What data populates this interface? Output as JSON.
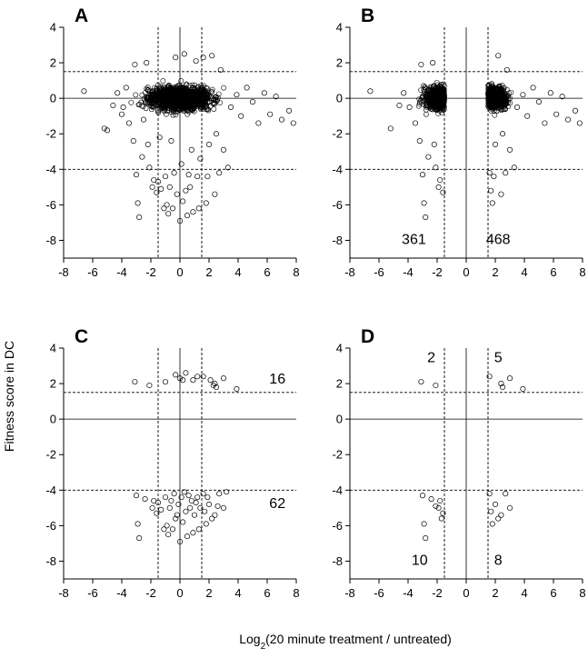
{
  "figure": {
    "ylabel": "Fitness score in DC",
    "xlabel_prefix": "Log",
    "xlabel_sub": "2",
    "xlabel_suffix": "(20 minute treatment / untreated)"
  },
  "chart_data": [
    {
      "type": "scatter",
      "panel": "A",
      "xlim": [
        -8,
        8
      ],
      "ylim": [
        -9,
        4
      ],
      "xticks": [
        -8,
        -6,
        -4,
        -2,
        0,
        2,
        4,
        6,
        8
      ],
      "yticks": [
        -8,
        -6,
        -4,
        -2,
        0,
        2,
        4
      ],
      "grid": false,
      "vlines": [
        -1.5,
        1.5
      ],
      "hlines": [
        1.5,
        -4
      ],
      "counts": [],
      "points": [
        [
          -6.6,
          0.4
        ],
        [
          -5.2,
          -1.7
        ],
        [
          -5.0,
          -1.8
        ],
        [
          -4.6,
          -0.4
        ],
        [
          -4.3,
          0.3
        ],
        [
          -4.0,
          -0.9
        ],
        [
          -3.9,
          -0.5
        ],
        [
          -3.7,
          0.6
        ],
        [
          -3.5,
          -1.4
        ],
        [
          -3.2,
          -2.4
        ],
        [
          -3.1,
          1.9
        ],
        [
          -3.0,
          -4.3
        ],
        [
          -2.9,
          -5.9
        ],
        [
          -2.8,
          -6.7
        ],
        [
          -2.6,
          -3.3
        ],
        [
          -2.5,
          -1.2
        ],
        [
          -2.3,
          2.0
        ],
        [
          -2.2,
          -2.6
        ],
        [
          -2.1,
          -3.9
        ],
        [
          -1.9,
          -5.0
        ],
        [
          -1.8,
          -4.6
        ],
        [
          -1.6,
          -5.3
        ],
        [
          -1.5,
          -4.7
        ],
        [
          -1.4,
          -2.2
        ],
        [
          -1.3,
          -5.1
        ],
        [
          -1.1,
          -6.2
        ],
        [
          -1.0,
          -4.4
        ],
        [
          -0.9,
          -6.0
        ],
        [
          -0.8,
          -6.5
        ],
        [
          -0.7,
          -5.0
        ],
        [
          -0.6,
          -2.4
        ],
        [
          -0.5,
          -6.2
        ],
        [
          -0.4,
          -4.2
        ],
        [
          -0.3,
          2.3
        ],
        [
          -0.2,
          -5.4
        ],
        [
          0.0,
          -6.9
        ],
        [
          0.1,
          -3.7
        ],
        [
          0.2,
          -5.8
        ],
        [
          0.3,
          2.5
        ],
        [
          0.4,
          -5.2
        ],
        [
          0.5,
          -6.6
        ],
        [
          0.6,
          -4.3
        ],
        [
          0.7,
          -5.0
        ],
        [
          0.8,
          -2.9
        ],
        [
          0.9,
          -6.4
        ],
        [
          1.1,
          2.1
        ],
        [
          1.2,
          -4.4
        ],
        [
          1.3,
          -6.2
        ],
        [
          1.4,
          -3.4
        ],
        [
          1.6,
          2.3
        ],
        [
          1.8,
          -5.9
        ],
        [
          1.9,
          -4.4
        ],
        [
          2.0,
          -2.6
        ],
        [
          2.2,
          2.4
        ],
        [
          2.4,
          -5.4
        ],
        [
          2.5,
          -2.0
        ],
        [
          2.7,
          -4.2
        ],
        [
          2.8,
          1.6
        ],
        [
          3.0,
          -2.9
        ],
        [
          3.3,
          -3.9
        ],
        [
          3.5,
          -0.5
        ],
        [
          3.9,
          0.2
        ],
        [
          4.2,
          -1.0
        ],
        [
          4.6,
          0.6
        ],
        [
          5.0,
          -0.2
        ],
        [
          5.4,
          -1.4
        ],
        [
          5.8,
          0.3
        ],
        [
          6.2,
          -0.9
        ],
        [
          6.6,
          0.1
        ],
        [
          7.0,
          -1.2
        ],
        [
          7.5,
          -0.7
        ],
        [
          7.8,
          -1.4
        ]
      ]
    },
    {
      "type": "scatter",
      "panel": "B",
      "xlim": [
        -8,
        8
      ],
      "ylim": [
        -9,
        4
      ],
      "xticks": [
        -8,
        -6,
        -4,
        -2,
        0,
        2,
        4,
        6,
        8
      ],
      "yticks": [
        -8,
        -6,
        -4,
        -2,
        0,
        2,
        4
      ],
      "grid": false,
      "vlines": [
        -1.5,
        1.5
      ],
      "hlines": [
        1.5,
        -4
      ],
      "counts": [
        {
          "text": "361",
          "x": -3.6,
          "y": -8.2
        },
        {
          "text": "468",
          "x": 2.2,
          "y": -8.2
        }
      ],
      "points": [
        [
          -6.6,
          0.4
        ],
        [
          -5.2,
          -1.7
        ],
        [
          -4.6,
          -0.4
        ],
        [
          -4.3,
          0.3
        ],
        [
          -3.9,
          -0.5
        ],
        [
          -3.5,
          -1.4
        ],
        [
          -3.2,
          -2.4
        ],
        [
          -3.1,
          1.9
        ],
        [
          -3.0,
          -4.3
        ],
        [
          -2.9,
          -5.9
        ],
        [
          -2.8,
          -6.7
        ],
        [
          -2.6,
          -3.3
        ],
        [
          -2.3,
          2.0
        ],
        [
          -2.2,
          -2.6
        ],
        [
          -2.1,
          -3.9
        ],
        [
          -1.9,
          -5.0
        ],
        [
          -1.8,
          -4.6
        ],
        [
          -1.6,
          -5.3
        ],
        [
          1.6,
          -4.2
        ],
        [
          1.7,
          -5.2
        ],
        [
          1.8,
          -5.9
        ],
        [
          1.9,
          -4.4
        ],
        [
          2.0,
          -2.6
        ],
        [
          2.2,
          2.4
        ],
        [
          2.4,
          -5.4
        ],
        [
          2.5,
          -2.0
        ],
        [
          2.7,
          -4.2
        ],
        [
          2.8,
          1.6
        ],
        [
          3.0,
          -2.9
        ],
        [
          3.3,
          -3.9
        ],
        [
          3.5,
          -0.5
        ],
        [
          3.9,
          0.2
        ],
        [
          4.2,
          -1.0
        ],
        [
          4.6,
          0.6
        ],
        [
          5.0,
          -0.2
        ],
        [
          5.4,
          -1.4
        ],
        [
          5.8,
          0.3
        ],
        [
          6.2,
          -0.9
        ],
        [
          6.6,
          0.1
        ],
        [
          7.0,
          -1.2
        ],
        [
          7.5,
          -0.7
        ],
        [
          7.8,
          -1.4
        ]
      ]
    },
    {
      "type": "scatter",
      "panel": "C",
      "xlim": [
        -8,
        8
      ],
      "ylim": [
        -9,
        4
      ],
      "xticks": [
        -8,
        -6,
        -4,
        -2,
        0,
        2,
        4,
        6,
        8
      ],
      "yticks": [
        -8,
        -6,
        -4,
        -2,
        0,
        2,
        4
      ],
      "grid": false,
      "vlines": [
        -1.5,
        1.5
      ],
      "hlines": [
        1.5,
        -4
      ],
      "counts": [
        {
          "text": "16",
          "x": 6.7,
          "y": 2.0
        },
        {
          "text": "62",
          "x": 6.7,
          "y": -5.0
        }
      ],
      "points": [
        [
          -3.1,
          2.1
        ],
        [
          -2.1,
          1.9
        ],
        [
          -1.0,
          2.1
        ],
        [
          -0.3,
          2.5
        ],
        [
          0.0,
          2.3
        ],
        [
          0.2,
          2.2
        ],
        [
          0.4,
          2.6
        ],
        [
          0.9,
          2.2
        ],
        [
          1.2,
          2.4
        ],
        [
          1.6,
          2.4
        ],
        [
          2.1,
          2.2
        ],
        [
          2.4,
          2.0
        ],
        [
          2.5,
          1.8
        ],
        [
          3.0,
          2.3
        ],
        [
          3.9,
          1.7
        ],
        [
          2.3,
          1.9
        ],
        [
          -3.0,
          -4.3
        ],
        [
          -2.9,
          -5.9
        ],
        [
          -2.8,
          -6.7
        ],
        [
          -2.4,
          -4.5
        ],
        [
          -1.9,
          -5.0
        ],
        [
          -1.8,
          -4.6
        ],
        [
          -1.6,
          -5.3
        ],
        [
          -1.5,
          -4.7
        ],
        [
          -1.3,
          -5.1
        ],
        [
          -1.1,
          -6.2
        ],
        [
          -1.0,
          -4.4
        ],
        [
          -0.9,
          -6.0
        ],
        [
          -0.8,
          -6.5
        ],
        [
          -0.7,
          -5.0
        ],
        [
          -0.6,
          -4.6
        ],
        [
          -0.5,
          -6.2
        ],
        [
          -0.4,
          -4.2
        ],
        [
          -0.3,
          -5.6
        ],
        [
          -0.2,
          -5.4
        ],
        [
          -0.1,
          -4.8
        ],
        [
          0.0,
          -6.9
        ],
        [
          0.1,
          -4.4
        ],
        [
          0.2,
          -5.8
        ],
        [
          0.3,
          -4.1
        ],
        [
          0.4,
          -5.2
        ],
        [
          0.5,
          -6.6
        ],
        [
          0.6,
          -4.3
        ],
        [
          0.7,
          -5.0
        ],
        [
          0.8,
          -4.6
        ],
        [
          0.9,
          -6.4
        ],
        [
          1.0,
          -5.4
        ],
        [
          1.1,
          -4.7
        ],
        [
          1.2,
          -4.4
        ],
        [
          1.3,
          -6.2
        ],
        [
          1.4,
          -5.0
        ],
        [
          1.6,
          -4.2
        ],
        [
          1.7,
          -5.2
        ],
        [
          1.8,
          -5.9
        ],
        [
          1.9,
          -4.4
        ],
        [
          2.0,
          -4.8
        ],
        [
          2.2,
          -5.6
        ],
        [
          2.4,
          -5.4
        ],
        [
          2.6,
          -4.9
        ],
        [
          2.7,
          -4.2
        ],
        [
          3.0,
          -5.0
        ],
        [
          3.2,
          -4.1
        ]
      ]
    },
    {
      "type": "scatter",
      "panel": "D",
      "xlim": [
        -8,
        8
      ],
      "ylim": [
        -9,
        4
      ],
      "xticks": [
        -8,
        -6,
        -4,
        -2,
        0,
        2,
        4,
        6,
        8
      ],
      "yticks": [
        -8,
        -6,
        -4,
        -2,
        0,
        2,
        4
      ],
      "grid": false,
      "vlines": [
        -1.5,
        1.5
      ],
      "hlines": [
        1.5,
        -4
      ],
      "counts": [
        {
          "text": "2",
          "x": -2.4,
          "y": 3.2
        },
        {
          "text": "5",
          "x": 2.2,
          "y": 3.2
        },
        {
          "text": "10",
          "x": -3.2,
          "y": -8.2
        },
        {
          "text": "8",
          "x": 2.2,
          "y": -8.2
        }
      ],
      "points": [
        [
          -3.1,
          2.1
        ],
        [
          -2.1,
          1.9
        ],
        [
          1.6,
          2.4
        ],
        [
          2.4,
          2.0
        ],
        [
          2.5,
          1.8
        ],
        [
          3.0,
          2.3
        ],
        [
          3.9,
          1.7
        ],
        [
          -3.0,
          -4.3
        ],
        [
          -2.9,
          -5.9
        ],
        [
          -2.8,
          -6.7
        ],
        [
          -2.4,
          -4.5
        ],
        [
          -1.9,
          -5.0
        ],
        [
          -1.8,
          -4.6
        ],
        [
          -1.6,
          -5.3
        ],
        [
          -1.7,
          -5.6
        ],
        [
          -2.1,
          -4.9
        ],
        [
          1.6,
          -4.2
        ],
        [
          1.7,
          -5.2
        ],
        [
          1.8,
          -5.9
        ],
        [
          2.2,
          -5.6
        ],
        [
          2.4,
          -5.4
        ],
        [
          2.7,
          -4.2
        ],
        [
          3.0,
          -5.0
        ],
        [
          2.0,
          -4.8
        ]
      ]
    }
  ]
}
